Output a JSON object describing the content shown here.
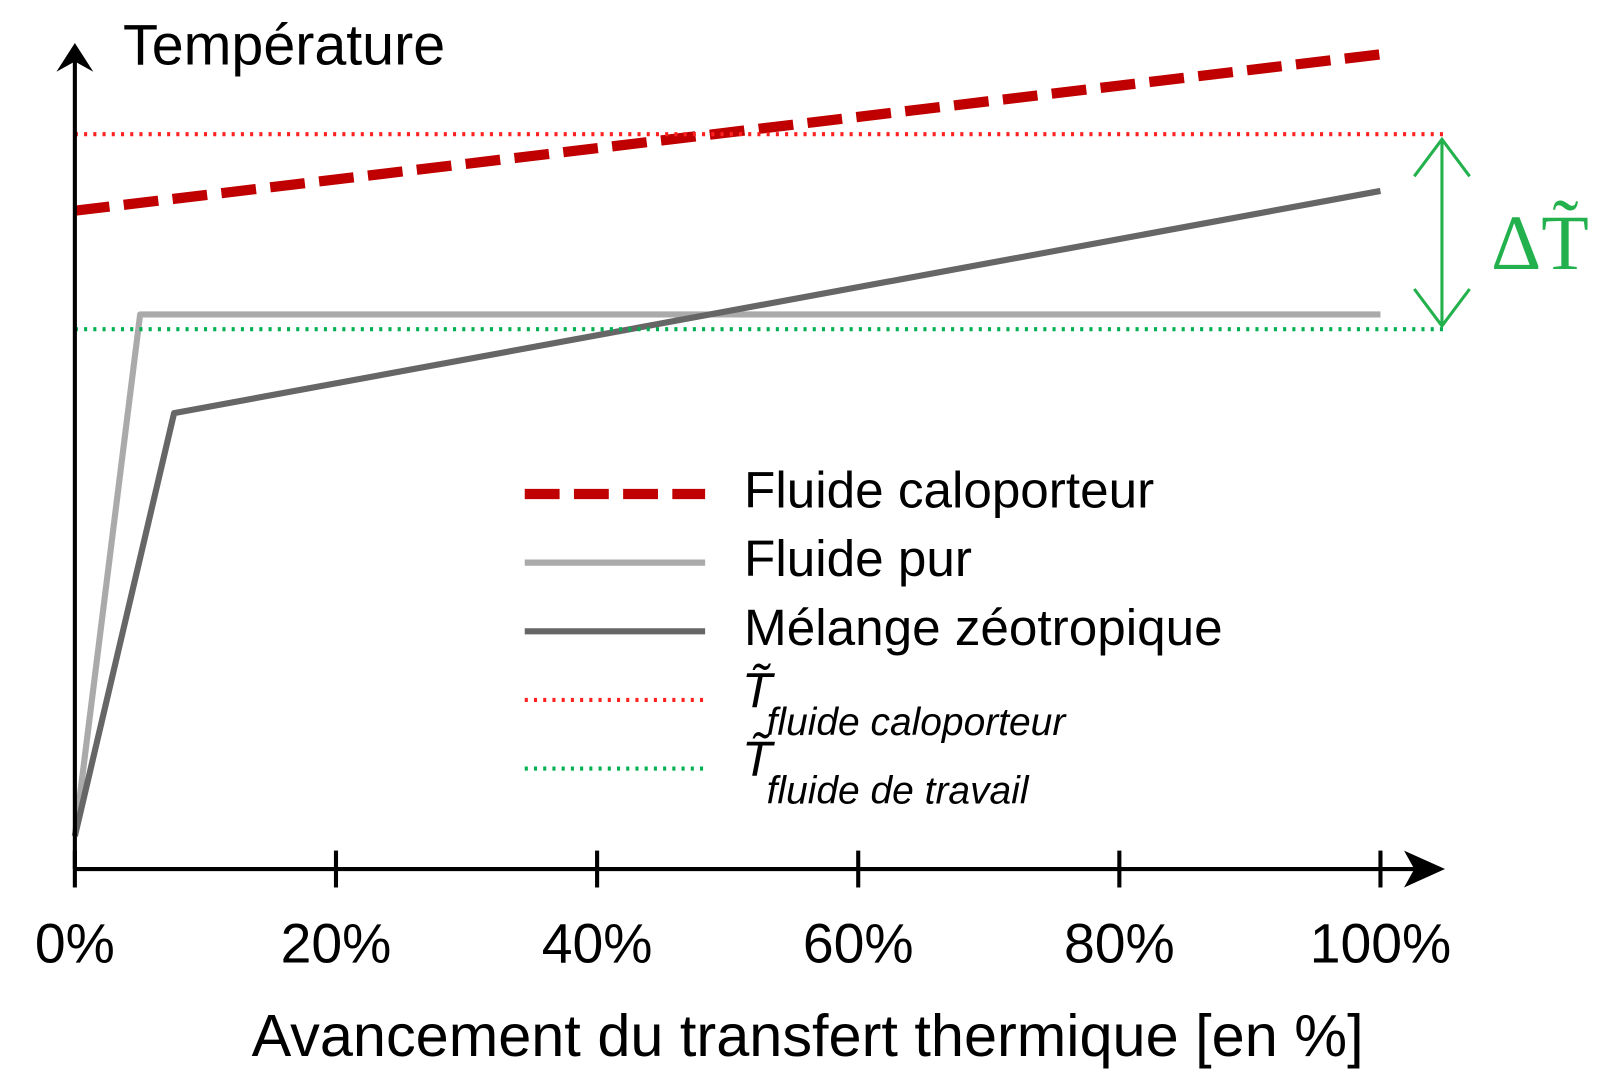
{
  "chart_data": {
    "type": "line",
    "ylabel": "Température",
    "xlabel": "Avancement du transfert thermique [en %]",
    "annotation": "ΔT̃",
    "xlim": [
      0,
      105
    ],
    "ylim": [
      0,
      100
    ],
    "xticks": [
      {
        "value": 0,
        "label": "0%"
      },
      {
        "value": 20,
        "label": "20%"
      },
      {
        "value": 40,
        "label": "40%"
      },
      {
        "value": 60,
        "label": "60%"
      },
      {
        "value": 80,
        "label": "80%"
      },
      {
        "value": 100,
        "label": "100%"
      }
    ],
    "series": [
      {
        "name": "Fluide caloporteur",
        "color": "#c00000",
        "style": "dashed",
        "x": [
          0,
          100
        ],
        "values": [
          80,
          99
        ]
      },
      {
        "name": "Fluide pur",
        "color": "#aaaaaa",
        "style": "solid",
        "x": [
          0,
          5,
          100
        ],
        "values": [
          4,
          67.4,
          67.4
        ]
      },
      {
        "name": "Mélange zéotropique",
        "color": "#666666",
        "style": "solid",
        "x": [
          0,
          7.6,
          100
        ],
        "values": [
          4,
          55.4,
          82.4
        ]
      },
      {
        "name": "T̃",
        "name_sub": "fluide caloporteur",
        "color": "#ff2020",
        "style": "dotted",
        "x": [
          0,
          105
        ],
        "values": [
          89.3,
          89.3
        ]
      },
      {
        "name": "T̃",
        "name_sub": "fluide de travail",
        "color": "#00b050",
        "style": "dotted",
        "x": [
          0,
          105
        ],
        "values": [
          65.6,
          65.6
        ]
      }
    ]
  }
}
